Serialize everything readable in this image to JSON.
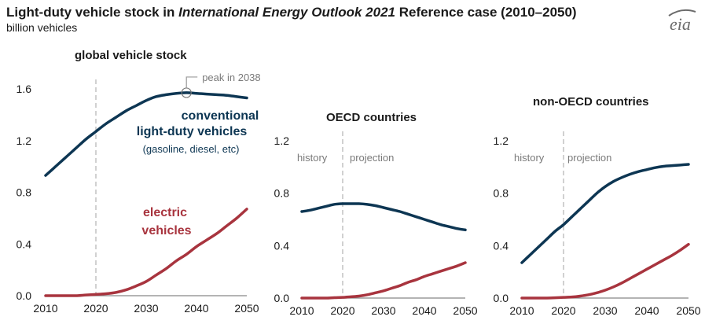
{
  "header": {
    "title_part1": "Light-duty vehicle stock in ",
    "title_italic": "International Energy Outlook 2021",
    "title_part2": " Reference case (2010–2050)",
    "subtitle": "billion vehicles",
    "logo_text": "eia"
  },
  "colors": {
    "conventional": "#0d3653",
    "electric": "#a8343e",
    "axis": "#888888",
    "divider": "#b8b8b8",
    "annotation": "#7a7a7a"
  },
  "annotations": {
    "peak": "peak in 2038",
    "history": "history",
    "projection": "projection",
    "conventional_line1": "conventional",
    "conventional_line2": "light-duty vehicles",
    "conventional_line3": "(gasoline, diesel, etc)",
    "electric_line1": "electric",
    "electric_line2": "vehicles"
  },
  "chart_data": [
    {
      "type": "line",
      "title": "global vehicle stock",
      "x": [
        2010,
        2012,
        2014,
        2016,
        2018,
        2020,
        2022,
        2024,
        2026,
        2028,
        2030,
        2032,
        2034,
        2036,
        2038,
        2040,
        2042,
        2044,
        2046,
        2048,
        2050
      ],
      "series": [
        {
          "name": "conventional light-duty vehicles",
          "values": [
            0.93,
            1.0,
            1.07,
            1.14,
            1.21,
            1.27,
            1.33,
            1.38,
            1.43,
            1.47,
            1.51,
            1.54,
            1.555,
            1.565,
            1.57,
            1.565,
            1.56,
            1.555,
            1.55,
            1.54,
            1.53
          ]
        },
        {
          "name": "electric vehicles",
          "values": [
            0.0,
            0.0,
            0.0,
            0.0,
            0.005,
            0.01,
            0.015,
            0.025,
            0.045,
            0.075,
            0.11,
            0.16,
            0.21,
            0.27,
            0.32,
            0.38,
            0.43,
            0.48,
            0.54,
            0.6,
            0.67
          ]
        }
      ],
      "xlim": [
        2010,
        2050
      ],
      "ylim": [
        0,
        1.6
      ],
      "x_ticks": [
        "2010",
        "2020",
        "2030",
        "2040",
        "2050"
      ],
      "y_ticks": [
        "0.0",
        "0.4",
        "0.8",
        "1.2",
        "1.6"
      ],
      "history_end": 2020
    },
    {
      "type": "line",
      "title": "OECD countries",
      "x": [
        2010,
        2012,
        2014,
        2016,
        2018,
        2020,
        2022,
        2024,
        2026,
        2028,
        2030,
        2032,
        2034,
        2036,
        2038,
        2040,
        2042,
        2044,
        2046,
        2048,
        2050
      ],
      "series": [
        {
          "name": "conventional",
          "values": [
            0.66,
            0.67,
            0.685,
            0.7,
            0.715,
            0.72,
            0.72,
            0.72,
            0.715,
            0.705,
            0.69,
            0.675,
            0.66,
            0.64,
            0.62,
            0.6,
            0.58,
            0.56,
            0.545,
            0.53,
            0.52
          ]
        },
        {
          "name": "electric",
          "values": [
            0.0,
            0.0,
            0.0,
            0.0,
            0.003,
            0.005,
            0.01,
            0.015,
            0.025,
            0.04,
            0.055,
            0.075,
            0.095,
            0.12,
            0.14,
            0.165,
            0.185,
            0.205,
            0.225,
            0.245,
            0.27
          ]
        }
      ],
      "xlim": [
        2010,
        2050
      ],
      "ylim": [
        0,
        1.2
      ],
      "x_ticks": [
        "2010",
        "2020",
        "2030",
        "2040",
        "2050"
      ],
      "y_ticks": [
        "0.0",
        "0.4",
        "0.8",
        "1.2"
      ],
      "history_end": 2020
    },
    {
      "type": "line",
      "title": "non-OECD countries",
      "x": [
        2010,
        2012,
        2014,
        2016,
        2018,
        2020,
        2022,
        2024,
        2026,
        2028,
        2030,
        2032,
        2034,
        2036,
        2038,
        2040,
        2042,
        2044,
        2046,
        2048,
        2050
      ],
      "series": [
        {
          "name": "conventional",
          "values": [
            0.27,
            0.33,
            0.39,
            0.45,
            0.51,
            0.56,
            0.62,
            0.68,
            0.74,
            0.8,
            0.85,
            0.89,
            0.92,
            0.945,
            0.965,
            0.98,
            0.995,
            1.005,
            1.01,
            1.015,
            1.02
          ]
        },
        {
          "name": "electric",
          "values": [
            0.0,
            0.0,
            0.0,
            0.0,
            0.002,
            0.005,
            0.008,
            0.015,
            0.025,
            0.04,
            0.06,
            0.085,
            0.115,
            0.15,
            0.185,
            0.22,
            0.255,
            0.29,
            0.325,
            0.365,
            0.41
          ]
        }
      ],
      "xlim": [
        2010,
        2050
      ],
      "ylim": [
        0,
        1.2
      ],
      "x_ticks": [
        "2010",
        "2020",
        "2030",
        "2040",
        "2050"
      ],
      "y_ticks": [
        "0.0",
        "0.4",
        "0.8",
        "1.2"
      ],
      "history_end": 2020
    }
  ]
}
